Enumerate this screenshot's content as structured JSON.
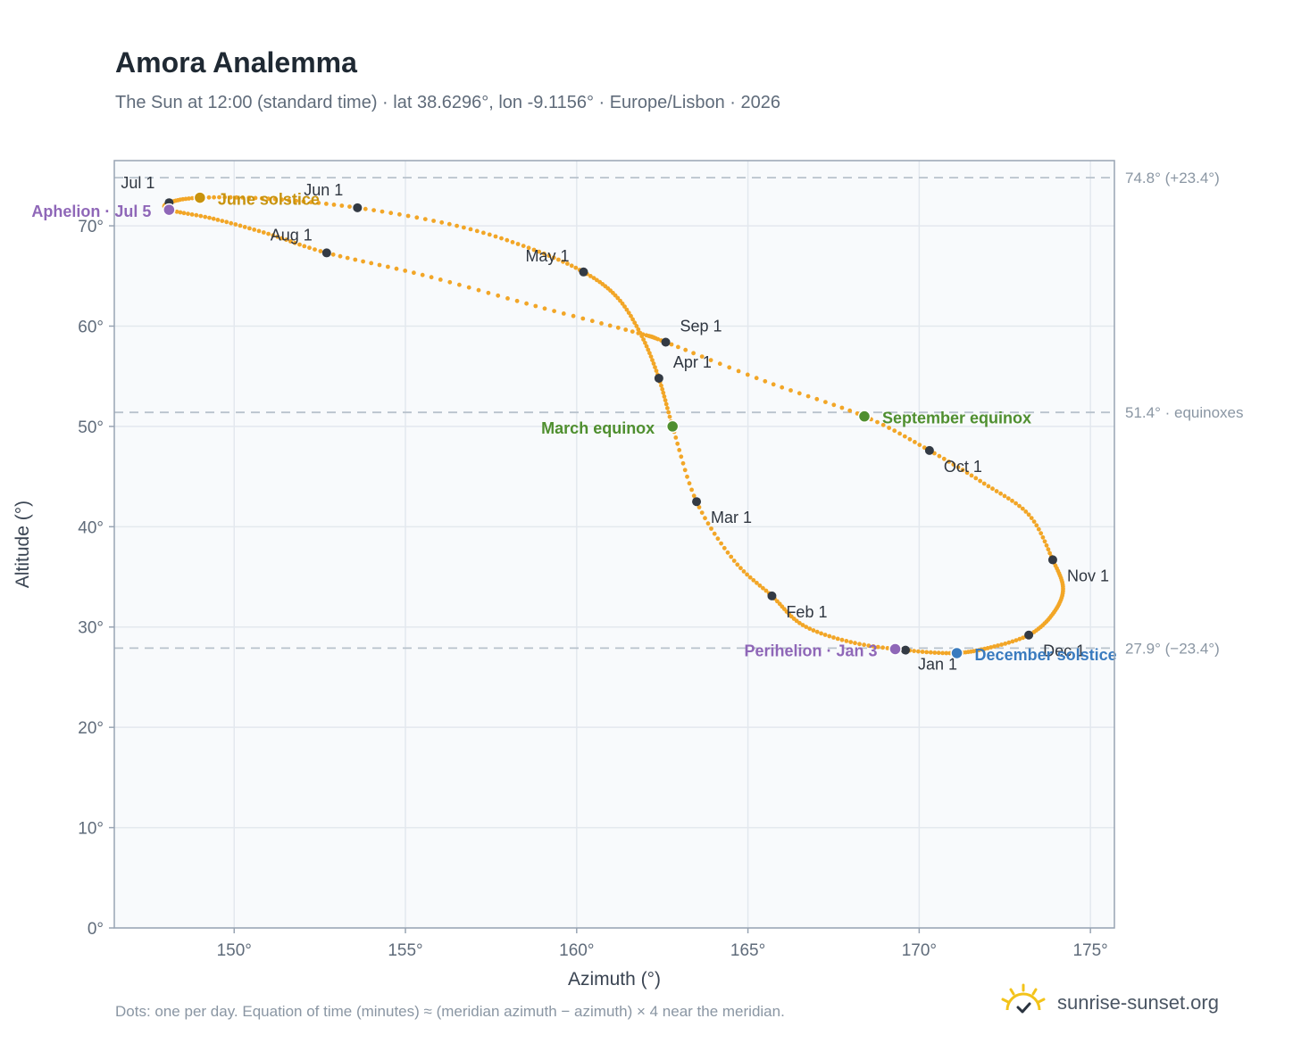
{
  "header": {
    "title": "Amora Analemma",
    "subtitle": "The Sun at 12:00 (standard time) · lat 38.6296°, lon -9.1156° · Europe/Lisbon · 2026"
  },
  "footer": {
    "note": "Dots: one per day. Equation of time (minutes) ≈ (meridian azimuth − azimuth) × 4 near the meridian.",
    "brand": "sunrise-sunset.org",
    "brand_icon": "sun-logo-icon"
  },
  "colors": {
    "path": "#f2a627",
    "month_marker": "#333a44",
    "equinox": "#4f8f2f",
    "june_solstice": "#c8930e",
    "december_solstice": "#3a7bbf",
    "perihelion_aphelion": "#8f67b8",
    "grid": "#e3e8ee",
    "plot_bg": "#f8fafc",
    "frame": "#98a4b3",
    "ref_line": "#b8c2cc"
  },
  "chart_data": {
    "type": "scatter",
    "xlabel": "Azimuth (°)",
    "ylabel": "Altitude (°)",
    "xlim": [
      146.5,
      175.7
    ],
    "ylim": [
      0,
      76.5
    ],
    "x_ticks": [
      "150°",
      "155°",
      "160°",
      "165°",
      "170°",
      "175°"
    ],
    "y_ticks": [
      "0°",
      "10°",
      "20°",
      "30°",
      "40°",
      "50°",
      "60°",
      "70°"
    ],
    "x_tick_values": [
      150,
      155,
      160,
      165,
      170,
      175
    ],
    "y_tick_values": [
      0,
      10,
      20,
      30,
      40,
      50,
      60,
      70
    ],
    "grid": true,
    "reference_lines": [
      {
        "y": 74.8,
        "label": "74.8° (+23.4°)"
      },
      {
        "y": 51.4,
        "label": "51.4° · equinoxes"
      },
      {
        "y": 27.9,
        "label": "27.9° (−23.4°)"
      }
    ],
    "series": [
      {
        "points": [
          {
            "x": 169.6,
            "y": 27.7
          },
          {
            "x": 168.0,
            "y": 28.5
          },
          {
            "x": 166.6,
            "y": 30.2
          },
          {
            "x": 165.7,
            "y": 33.1
          },
          {
            "x": 164.6,
            "y": 36.6
          },
          {
            "x": 163.5,
            "y": 42.5
          },
          {
            "x": 162.8,
            "y": 50.0
          },
          {
            "x": 162.4,
            "y": 54.8
          },
          {
            "x": 161.9,
            "y": 59.0
          },
          {
            "x": 161.2,
            "y": 62.8
          },
          {
            "x": 160.2,
            "y": 65.4
          },
          {
            "x": 158.6,
            "y": 67.8
          },
          {
            "x": 156.5,
            "y": 70.0
          },
          {
            "x": 153.6,
            "y": 71.8
          },
          {
            "x": 151.0,
            "y": 72.7
          },
          {
            "x": 149.0,
            "y": 72.8
          },
          {
            "x": 148.1,
            "y": 72.3
          },
          {
            "x": 148.1,
            "y": 71.6
          },
          {
            "x": 149.4,
            "y": 70.7
          },
          {
            "x": 151.0,
            "y": 69.2
          },
          {
            "x": 152.7,
            "y": 67.3
          },
          {
            "x": 155.5,
            "y": 65.1
          },
          {
            "x": 158.8,
            "y": 62.0
          },
          {
            "x": 161.8,
            "y": 59.3
          },
          {
            "x": 162.6,
            "y": 58.4
          },
          {
            "x": 165.5,
            "y": 54.5
          },
          {
            "x": 168.4,
            "y": 51.0
          },
          {
            "x": 170.3,
            "y": 47.6
          },
          {
            "x": 171.9,
            "y": 44.3
          },
          {
            "x": 173.2,
            "y": 41.2
          },
          {
            "x": 173.9,
            "y": 36.7
          },
          {
            "x": 174.2,
            "y": 33.8
          },
          {
            "x": 173.9,
            "y": 31.3
          },
          {
            "x": 173.2,
            "y": 29.2
          },
          {
            "x": 172.0,
            "y": 27.9
          },
          {
            "x": 171.0,
            "y": 27.4
          },
          {
            "x": 169.6,
            "y": 27.7
          }
        ]
      }
    ],
    "month_markers": [
      {
        "label": "Jan 1",
        "x": 169.6,
        "y": 27.7
      },
      {
        "label": "Feb 1",
        "x": 165.7,
        "y": 33.1
      },
      {
        "label": "Mar 1",
        "x": 163.5,
        "y": 42.5
      },
      {
        "label": "Apr 1",
        "x": 162.4,
        "y": 54.8
      },
      {
        "label": "May 1",
        "x": 160.2,
        "y": 65.4
      },
      {
        "label": "Jun 1",
        "x": 153.6,
        "y": 71.8
      },
      {
        "label": "Jul 1",
        "x": 148.1,
        "y": 72.3
      },
      {
        "label": "Aug 1",
        "x": 152.7,
        "y": 67.3
      },
      {
        "label": "Sep 1",
        "x": 162.6,
        "y": 58.4
      },
      {
        "label": "Oct 1",
        "x": 170.3,
        "y": 47.6
      },
      {
        "label": "Nov 1",
        "x": 173.9,
        "y": 36.7
      },
      {
        "label": "Dec 1",
        "x": 173.2,
        "y": 29.2
      }
    ],
    "events": [
      {
        "label": "March equinox",
        "x": 162.8,
        "y": 50.0,
        "color": "#4f8f2f"
      },
      {
        "label": "June solstice",
        "x": 149.0,
        "y": 72.8,
        "color": "#c8930e"
      },
      {
        "label": "September equinox",
        "x": 168.4,
        "y": 51.0,
        "color": "#4f8f2f"
      },
      {
        "label": "December solstice",
        "x": 171.1,
        "y": 27.4,
        "color": "#3a7bbf"
      },
      {
        "label": "Perihelion · Jan 3",
        "x": 169.3,
        "y": 27.8,
        "color": "#8f67b8"
      },
      {
        "label": "Aphelion · Jul 5",
        "x": 148.1,
        "y": 71.6,
        "color": "#8f67b8"
      }
    ]
  }
}
